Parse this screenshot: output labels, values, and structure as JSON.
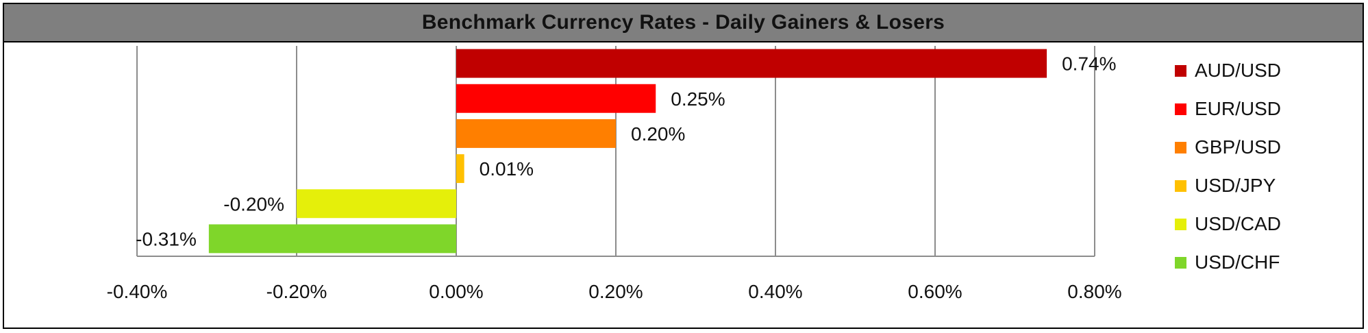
{
  "chart_data": {
    "type": "bar",
    "orientation": "horizontal",
    "title": "Benchmark Currency Rates - Daily Gainers & Losers",
    "categories": [
      "AUD/USD",
      "EUR/USD",
      "GBP/USD",
      "USD/JPY",
      "USD/CAD",
      "USD/CHF"
    ],
    "values": [
      0.74,
      0.25,
      0.2,
      0.01,
      -0.2,
      -0.31
    ],
    "value_labels": [
      "0.74%",
      "0.25%",
      "0.20%",
      "0.01%",
      "-0.20%",
      "-0.31%"
    ],
    "colors": [
      "#c00000",
      "#ff0000",
      "#ff7f00",
      "#ffc000",
      "#e5ef0a",
      "#7fd62a"
    ],
    "xlim": [
      -0.4,
      0.8
    ],
    "xticks": [
      -0.4,
      -0.2,
      0.0,
      0.2,
      0.4,
      0.6,
      0.8
    ],
    "xtick_labels": [
      "-0.40%",
      "-0.20%",
      "0.00%",
      "0.20%",
      "0.40%",
      "0.60%",
      "0.80%"
    ],
    "grid": true,
    "legend_position": "right"
  }
}
